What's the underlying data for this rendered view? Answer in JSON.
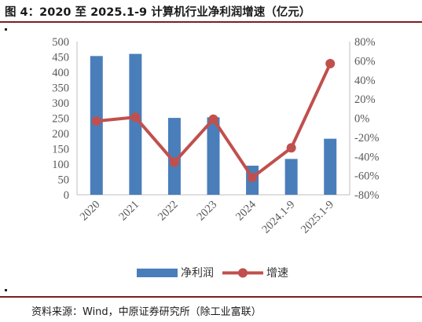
{
  "figure": {
    "title": "图 4：2020 至 2025.1-9 计算机行业净利润增速（亿元）",
    "source": "资料来源：Wind，中原证券研究所（除工业富联）"
  },
  "chart_data": {
    "type": "bar+line",
    "categories": [
      "2020",
      "2021",
      "2022",
      "2023",
      "2024",
      "2024.1-9",
      "2025.1-9"
    ],
    "series": [
      {
        "name": "净利润",
        "type": "bar",
        "axis": "left",
        "color": "#4a7ebb",
        "values": [
          453,
          460,
          251,
          253,
          95,
          117,
          183
        ]
      },
      {
        "name": "增速",
        "type": "line",
        "axis": "right",
        "color": "#c0504d",
        "values": [
          -3,
          1,
          -46,
          -1,
          -62,
          -31,
          57
        ]
      }
    ],
    "y_left": {
      "min": 0,
      "max": 500,
      "step": 50,
      "ticks": [
        "0",
        "50",
        "100",
        "150",
        "200",
        "250",
        "300",
        "350",
        "400",
        "450",
        "500"
      ]
    },
    "y_right": {
      "min": -80,
      "max": 80,
      "step": 20,
      "ticks": [
        "-80%",
        "-60%",
        "-40%",
        "-20%",
        "0%",
        "20%",
        "40%",
        "60%",
        "80%"
      ]
    },
    "grid": false,
    "legend_position": "bottom"
  }
}
